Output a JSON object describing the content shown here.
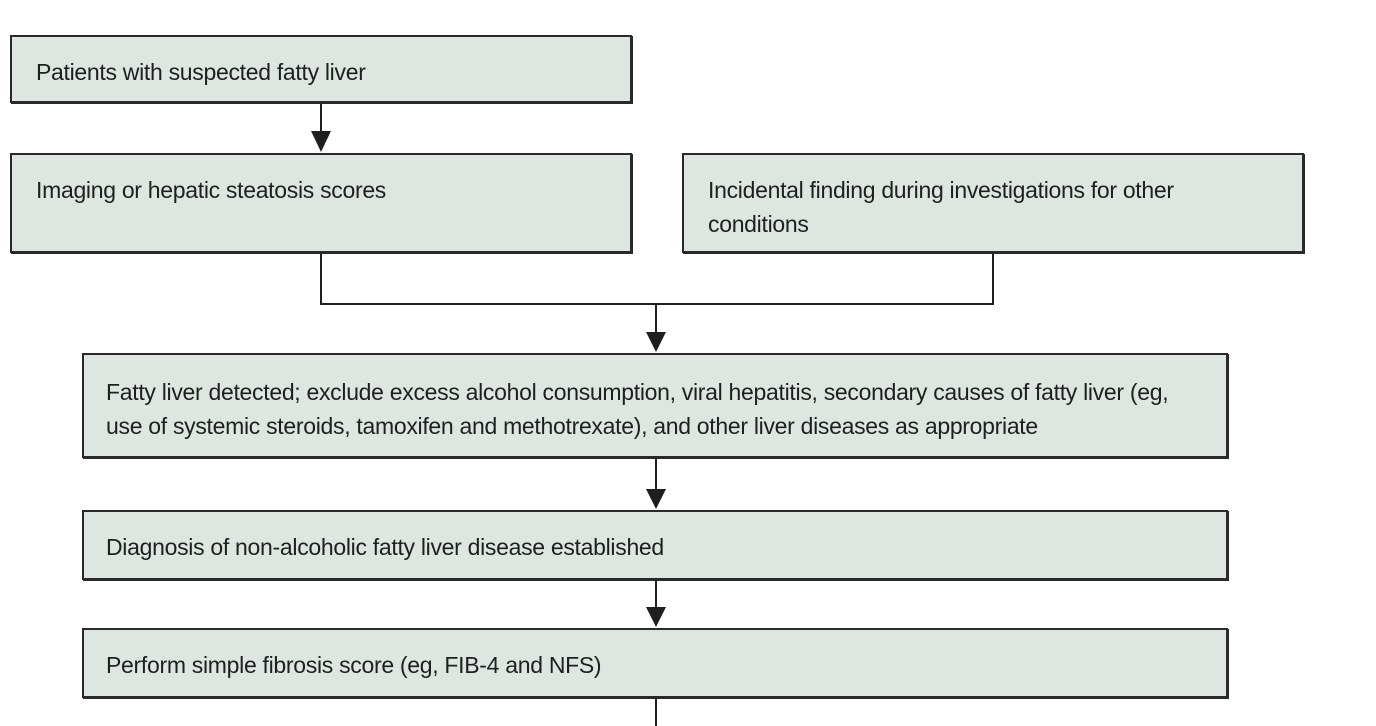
{
  "colors": {
    "box_fill": "#dde6e0",
    "box_border": "#2a2a2a",
    "connector": "#1f1f1f"
  },
  "flowchart": {
    "patients": "Patients with suspected fatty liver",
    "imaging": "Imaging or hepatic steatosis scores",
    "incidental": "Incidental finding during investigations for other conditions",
    "detected": "Fatty liver detected; exclude excess alcohol consumption, viral hepatitis, secondary causes of fatty liver (eg, use of systemic steroids, tamoxifen and methotrexate), and other liver diseases as appropriate",
    "diagnosis": "Diagnosis of non-alcoholic fatty liver disease established",
    "fibrosis": "Perform simple fibrosis score (eg, FIB-4 and NFS)"
  }
}
